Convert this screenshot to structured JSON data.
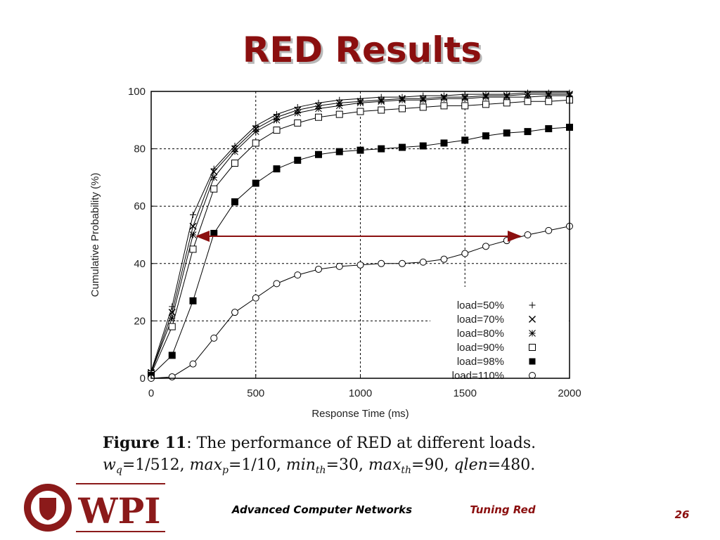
{
  "slide": {
    "title": "RED Results"
  },
  "chart_data": {
    "type": "line",
    "xlabel": "Response Time (ms)",
    "ylabel": "Cumulative Probability (%)",
    "x": [
      0,
      100,
      200,
      300,
      400,
      500,
      600,
      700,
      800,
      900,
      1000,
      1100,
      1200,
      1300,
      1400,
      1500,
      1600,
      1700,
      1800,
      1900,
      2000
    ],
    "xlim": [
      0,
      2000
    ],
    "xticks": [
      0,
      500,
      1000,
      1500,
      2000
    ],
    "ylim": [
      0,
      100
    ],
    "yticks": [
      0,
      20,
      40,
      60,
      80,
      100
    ],
    "grid": true,
    "legend": "lower right",
    "series": [
      {
        "name": "load=50%",
        "color": "#000000",
        "marker": "plus",
        "values": [
          2.5,
          25,
          57,
          73,
          81,
          88,
          92,
          94.5,
          96,
          97,
          97.5,
          98,
          98,
          98.5,
          98.5,
          99,
          99,
          99,
          99.5,
          99.5,
          99.5
        ]
      },
      {
        "name": "load=70%",
        "color": "#000000",
        "marker": "x",
        "values": [
          2,
          23,
          53,
          72,
          80,
          87,
          91,
          93.5,
          95,
          96,
          96.5,
          97,
          97.5,
          97.5,
          98,
          98,
          98.5,
          98.5,
          99,
          99,
          99
        ]
      },
      {
        "name": "load=80%",
        "color": "#000000",
        "marker": "star",
        "values": [
          2,
          21,
          50,
          70,
          79,
          86,
          90,
          92.5,
          94,
          95,
          96,
          96.5,
          97,
          97,
          97.5,
          97.5,
          98,
          98,
          98,
          98.5,
          98.5
        ]
      },
      {
        "name": "load=90%",
        "color": "#000000",
        "marker": "square",
        "values": [
          1.5,
          18,
          45,
          66,
          75,
          82,
          86.5,
          89,
          91,
          92,
          93,
          93.5,
          94,
          94.5,
          95,
          95,
          95.5,
          96,
          96.5,
          96.5,
          97
        ]
      },
      {
        "name": "load=98%",
        "color": "#000000",
        "marker": "filled-square",
        "values": [
          1,
          8,
          27,
          50.5,
          61.5,
          68,
          73,
          76,
          78,
          79,
          79.5,
          80,
          80.5,
          81,
          82,
          83,
          84.5,
          85.5,
          86,
          87,
          87.5
        ]
      },
      {
        "name": "load=110%",
        "color": "#000000",
        "marker": "circle",
        "values": [
          0,
          0.5,
          5,
          14,
          23,
          28,
          33,
          36,
          38,
          39,
          39.5,
          40,
          40,
          40.5,
          41.5,
          43.5,
          46,
          48,
          50,
          51.5,
          53
        ]
      }
    ]
  },
  "caption": {
    "label": "Figure 11",
    "line1": ": The performance of RED at different loads.",
    "line2": [
      "w",
      "q",
      "=1/512, ",
      "max",
      "p",
      "=1/10, ",
      "min",
      "th",
      "=30, ",
      "max",
      "th",
      "=90, ",
      "qlen",
      "=480."
    ]
  },
  "footer": {
    "logo_text": "WPI",
    "course": "Advanced Computer Networks",
    "topic": "Tuning Red",
    "page": "26"
  }
}
